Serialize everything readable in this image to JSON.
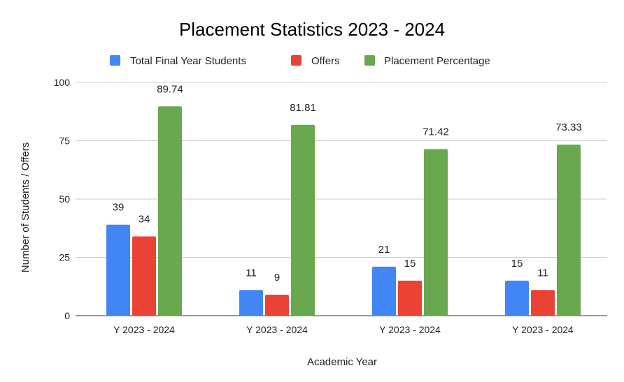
{
  "chart_data": {
    "type": "bar",
    "title": "Placement Statistics 2023 - 2024",
    "xlabel": "Academic Year",
    "ylabel": "Number of Students / Offers",
    "ylim": [
      0,
      100
    ],
    "yticks": [
      0,
      25,
      50,
      75,
      100
    ],
    "grid": true,
    "legend_position": "top",
    "categories": [
      "Y 2023 - 2024",
      "Y 2023 - 2024",
      "Y 2023 - 2024",
      "Y 2023 - 2024"
    ],
    "series": [
      {
        "name": "Total Final Year Students",
        "color": "#4285f4",
        "values": [
          39,
          11,
          21,
          15
        ]
      },
      {
        "name": "Offers",
        "color": "#ea4335",
        "values": [
          34,
          9,
          15,
          11
        ]
      },
      {
        "name": "Placement Percentage",
        "color": "#6aa84f",
        "values": [
          89.74,
          81.81,
          71.42,
          73.33
        ]
      }
    ]
  }
}
